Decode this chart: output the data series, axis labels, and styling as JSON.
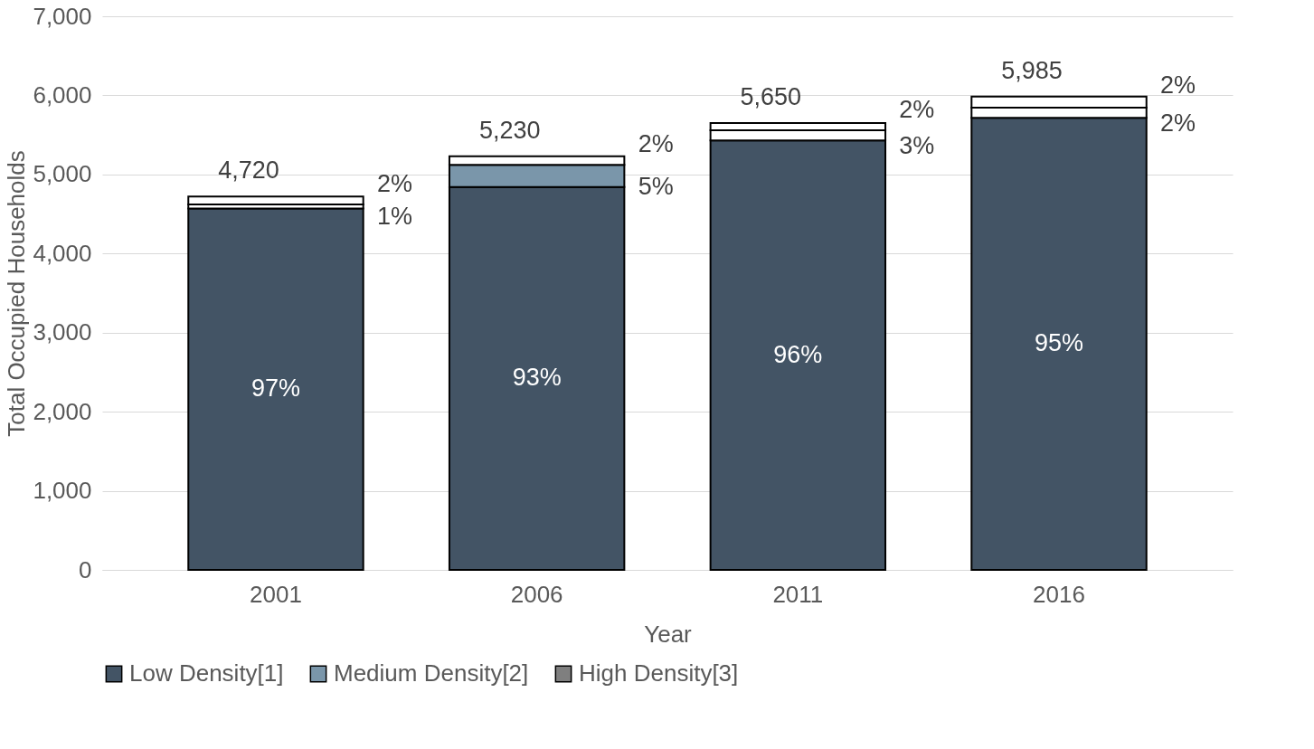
{
  "chart_data": {
    "type": "bar",
    "stacked": true,
    "xlabel": "Year",
    "ylabel": "Total Occupied Households",
    "categories": [
      "2001",
      "2006",
      "2011",
      "2016"
    ],
    "series": [
      {
        "name": "Low Density[1]",
        "color": "#435465",
        "colors": [
          "#435465",
          "#435465",
          "#435465",
          "#435465"
        ],
        "values": [
          4570,
          4840,
          5430,
          5715
        ]
      },
      {
        "name": "Medium Density[2]",
        "color": "#7a96aa",
        "colors": [
          "#ffffff",
          "#7a96aa",
          "#ffffff",
          "#ffffff"
        ],
        "values": [
          50,
          280,
          130,
          130
        ]
      },
      {
        "name": "High Density[3]",
        "color": "#7f7f7f",
        "colors": [
          "#ffffff",
          "#ffffff",
          "#ffffff",
          "#ffffff"
        ],
        "values": [
          100,
          110,
          90,
          140
        ]
      }
    ],
    "totals": [
      "4,720",
      "5,230",
      "5,650",
      "5,985"
    ],
    "annotations": [
      "97%",
      "93%",
      "96%",
      "95%",
      "1%",
      "5%",
      "3%",
      "2%",
      "2%",
      "2%",
      "2%",
      "2%"
    ],
    "ylim": [
      0,
      7000
    ],
    "yticks": [
      0,
      {
        "value": 1000,
        "label": "1,000"
      },
      {
        "value": 2000,
        "label": "2,000"
      },
      {
        "value": 3000,
        "label": "3,000"
      },
      {
        "value": 4000,
        "label": "4,000"
      },
      {
        "value": 5000,
        "label": "5,000"
      },
      {
        "value": 6000,
        "label": "6,000"
      },
      {
        "value": 7000,
        "label": "7,000"
      }
    ],
    "grid": "y",
    "legend": "bottom"
  }
}
